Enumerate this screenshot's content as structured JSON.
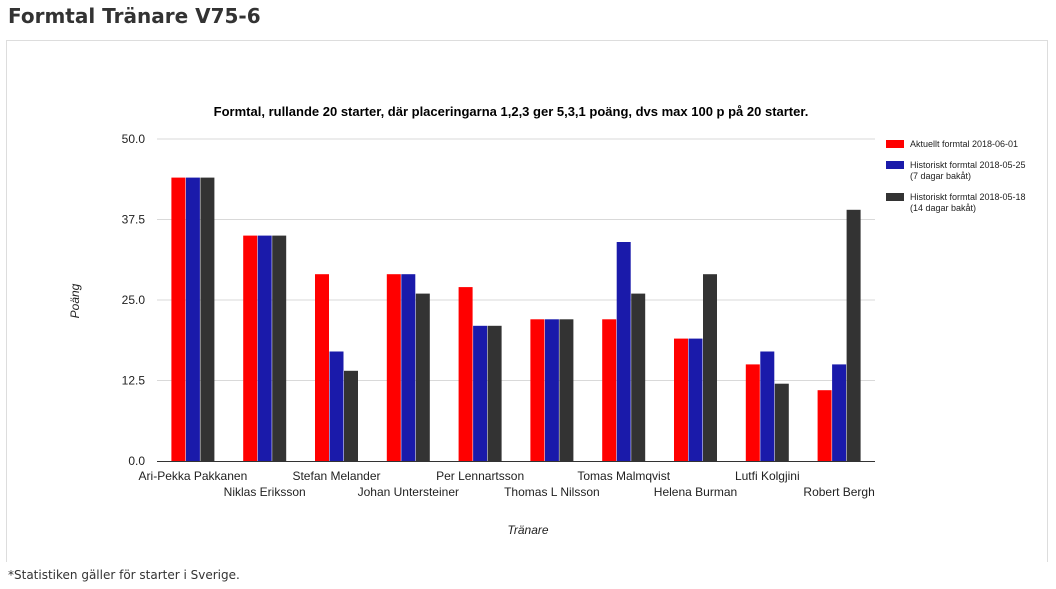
{
  "page": {
    "heading": "Formtal Tränare V75-6",
    "footnote": "*Statistiken gäller för starter i Sverige."
  },
  "chart_data": {
    "type": "bar",
    "title": "Formtal, rullande 20 starter, där placeringarna 1,2,3 ger 5,3,1 poäng, dvs max 100 p på 20 starter.",
    "xlabel": "Tränare",
    "ylabel": "Poäng",
    "ylim": [
      0,
      50
    ],
    "yticks": [
      "0.0",
      "12.5",
      "25.0",
      "37.5",
      "50.0"
    ],
    "grid": true,
    "legend_position": "right",
    "categories": [
      "Ari-Pekka Pakkanen",
      "Niklas Eriksson",
      "Stefan Melander",
      "Johan Untersteiner",
      "Per Lennartsson",
      "Thomas L Nilsson",
      "Tomas Malmqvist",
      "Helena Burman",
      "Lutfi Kolgjini",
      "Robert Bergh"
    ],
    "series": [
      {
        "name": "Aktuellt formtal 2018-06-01",
        "color": "#ff0000",
        "values": [
          44,
          35,
          29,
          29,
          27,
          22,
          22,
          19,
          15,
          11
        ]
      },
      {
        "name": "Historiskt formtal 2018-05-25 (7 dagar bakåt)",
        "name_lines": [
          "Historiskt formtal 2018-05-25",
          "(7 dagar bakåt)"
        ],
        "color": "#1a1aaa",
        "values": [
          44,
          35,
          17,
          29,
          21,
          22,
          34,
          19,
          17,
          15
        ]
      },
      {
        "name": "Historiskt formtal 2018-05-18 (14 dagar bakåt)",
        "name_lines": [
          "Historiskt formtal 2018-05-18",
          "(14 dagar bakåt)"
        ],
        "color": "#333333",
        "values": [
          44,
          35,
          14,
          26,
          21,
          22,
          26,
          29,
          12,
          39
        ]
      }
    ]
  }
}
